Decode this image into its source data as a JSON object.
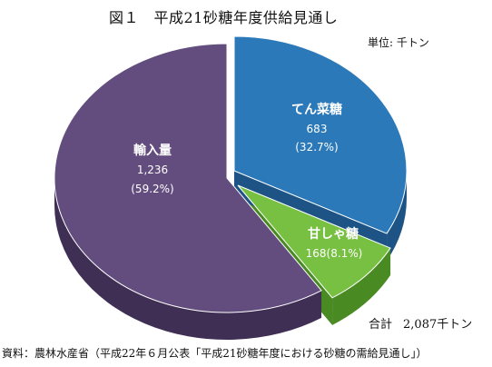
{
  "title": "図１　平成21砂糖年度供給見通し",
  "unit_label": "単位: 千トン",
  "total": {
    "label": "合計",
    "value": "2,087千トン"
  },
  "source": "資料：農林水産省（平成22年６月公表「平成21砂糖年度における砂糖の需給見通し」）",
  "chart_data": {
    "type": "pie",
    "title": "図１　平成21砂糖年度供給見通し",
    "unit": "千トン",
    "total": 2087,
    "slices": [
      {
        "name": "てん菜糖",
        "value": 683,
        "value_text": "683",
        "percent_text": "(32.7%)",
        "percent": 32.7,
        "color": "#2B79B9",
        "side_color": "#1D5485",
        "exploded": true
      },
      {
        "name": "甘しゃ糖",
        "value": 168,
        "value_text": "168(8.1%)",
        "percent": 8.1,
        "color": "#77C042",
        "side_color": "#4A8A22",
        "exploded": true
      },
      {
        "name": "輸入量",
        "value": 1236,
        "value_text": "1,236",
        "percent_text": "(59.2%)",
        "percent": 59.2,
        "color": "#634D7E",
        "side_color": "#3F2F55",
        "exploded": false
      }
    ]
  }
}
